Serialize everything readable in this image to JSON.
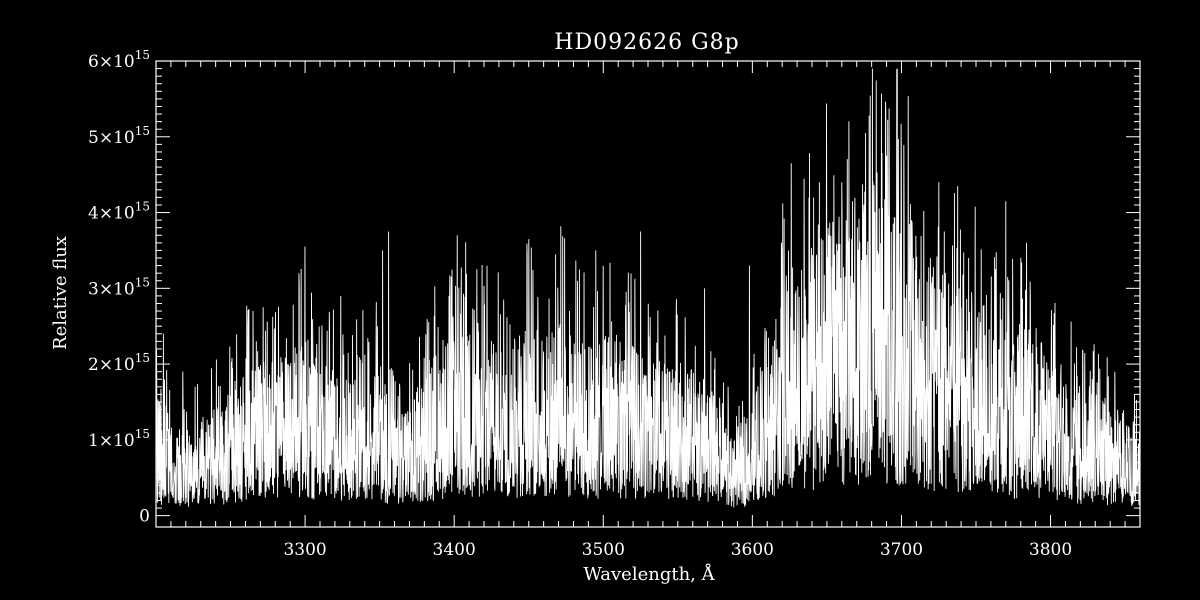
{
  "chart_data": {
    "type": "line",
    "title": "HD092626   G8p",
    "xlabel": "Wavelength, Å",
    "ylabel": "Relative flux",
    "xlim": [
      3200,
      3860
    ],
    "ylim": [
      -150000000000000,
      6000000000000000
    ],
    "x_ticks": [
      3300,
      3400,
      3500,
      3600,
      3700,
      3800
    ],
    "x_tick_labels": [
      "3300",
      "3400",
      "3500",
      "3600",
      "3700",
      "3800"
    ],
    "y_ticks": [
      {
        "value": 0,
        "mant": "0",
        "exp": ""
      },
      {
        "value": 1000000000000000,
        "mant": "1×10",
        "exp": "15"
      },
      {
        "value": 2000000000000000,
        "mant": "2×10",
        "exp": "15"
      },
      {
        "value": 3000000000000000,
        "mant": "3×10",
        "exp": "15"
      },
      {
        "value": 4000000000000000,
        "mant": "4×10",
        "exp": "15"
      },
      {
        "value": 5000000000000000,
        "mant": "5×10",
        "exp": "15"
      },
      {
        "value": 6000000000000000,
        "mant": "6×10",
        "exp": "15"
      }
    ],
    "series": [
      {
        "x": [
          3200,
          3210,
          3220,
          3230,
          3240,
          3250,
          3260,
          3270,
          3280,
          3290,
          3300,
          3310,
          3320,
          3330,
          3340,
          3350,
          3360,
          3370,
          3380,
          3390,
          3400,
          3410,
          3420,
          3430,
          3440,
          3450,
          3460,
          3470,
          3480,
          3490,
          3500,
          3510,
          3520,
          3530,
          3540,
          3550,
          3560,
          3570,
          3580,
          3590,
          3600,
          3610,
          3620,
          3630,
          3640,
          3650,
          3660,
          3670,
          3680,
          3690,
          3700,
          3710,
          3720,
          3730,
          3740,
          3750,
          3760,
          3770,
          3780,
          3790,
          3800,
          3810,
          3820,
          3830,
          3840,
          3850,
          3860
        ],
        "y": [
          1000000000000000.0,
          800000000000000.0,
          700000000000000.0,
          800000000000000.0,
          900000000000000.0,
          1000000000000000.0,
          1200000000000000.0,
          1300000000000000.0,
          1200000000000000.0,
          1400000000000000.0,
          1500000000000000.0,
          1300000000000000.0,
          1200000000000000.0,
          1100000000000000.0,
          1200000000000000.0,
          1300000000000000.0,
          800000000000000.0,
          900000000000000.0,
          1200000000000000.0,
          1400000000000000.0,
          1500000000000000.0,
          1600000000000000.0,
          1500000000000000.0,
          1400000000000000.0,
          1500000000000000.0,
          1600000000000000.0,
          1600000000000000.0,
          1700000000000000.0,
          1500000000000000.0,
          1400000000000000.0,
          1500000000000000.0,
          1500000000000000.0,
          1400000000000000.0,
          1300000000000000.0,
          1200000000000000.0,
          1300000000000000.0,
          1200000000000000.0,
          1000000000000000.0,
          900000000000000.0,
          600000000000000.0,
          900000000000000.0,
          1400000000000000.0,
          1800000000000000.0,
          2000000000000000.0,
          2200000000000000.0,
          2400000000000000.0,
          2500000000000000.0,
          2700000000000000.0,
          2800000000000000.0,
          2700000000000000.0,
          2600000000000000.0,
          2400000000000000.0,
          2200000000000000.0,
          2000000000000000.0,
          2000000000000000.0,
          1900000000000000.0,
          1800000000000000.0,
          1600000000000000.0,
          1500000000000000.0,
          1400000000000000.0,
          1300000000000000.0,
          1200000000000000.0,
          1000000000000000.0,
          1000000000000000.0,
          900000000000000.0,
          800000000000000.0,
          800000000000000.0
        ],
        "peaks": [
          {
            "x": 3205,
            "y": 2400000000000000.0
          },
          {
            "x": 3218,
            "y": 1900000000000000.0
          },
          {
            "x": 3265,
            "y": 2700000000000000.0
          },
          {
            "x": 3296,
            "y": 3000000000000000.0
          },
          {
            "x": 3300,
            "y": 3550000000000000.0
          },
          {
            "x": 3324,
            "y": 2900000000000000.0
          },
          {
            "x": 3352,
            "y": 3500000000000000.0
          },
          {
            "x": 3356,
            "y": 3750000000000000.0
          },
          {
            "x": 3402,
            "y": 3700000000000000.0
          },
          {
            "x": 3422,
            "y": 3300000000000000.0
          },
          {
            "x": 3450,
            "y": 3650000000000000.0
          },
          {
            "x": 3468,
            "y": 3450000000000000.0
          },
          {
            "x": 3495,
            "y": 3500000000000000.0
          },
          {
            "x": 3525,
            "y": 3750000000000000.0
          },
          {
            "x": 3568,
            "y": 3000000000000000.0
          },
          {
            "x": 3598,
            "y": 3300000000000000.0
          },
          {
            "x": 3626,
            "y": 4650000000000000.0
          },
          {
            "x": 3645,
            "y": 4400000000000000.0
          },
          {
            "x": 3660,
            "y": 4400000000000000.0
          },
          {
            "x": 3676,
            "y": 5050000000000000.0
          },
          {
            "x": 3690,
            "y": 4750000000000000.0
          },
          {
            "x": 3700,
            "y": 4500000000000000.0
          },
          {
            "x": 3725,
            "y": 4400000000000000.0
          },
          {
            "x": 3745,
            "y": 3400000000000000.0
          },
          {
            "x": 3770,
            "y": 4150000000000000.0
          },
          {
            "x": 3784,
            "y": 3600000000000000.0
          },
          {
            "x": 3828,
            "y": 1800000000000000.0
          }
        ]
      }
    ]
  }
}
